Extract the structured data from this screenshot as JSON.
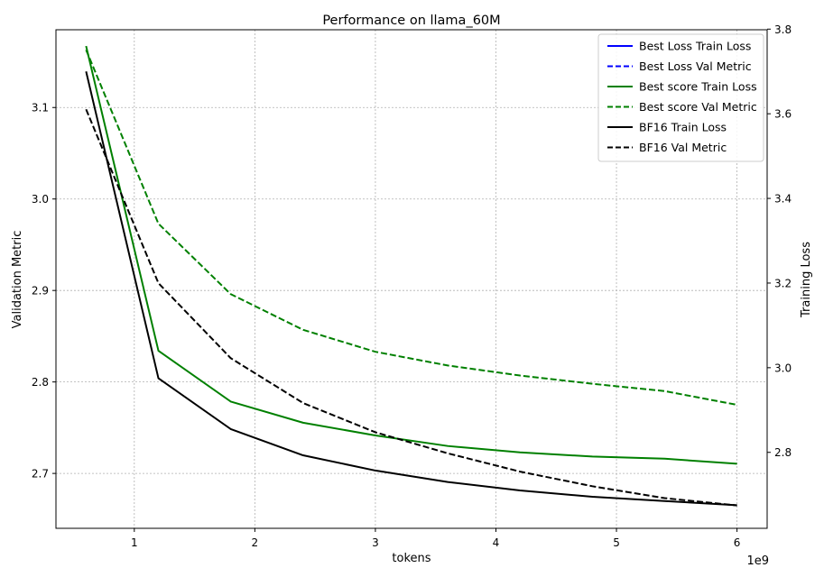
{
  "chart_data": {
    "type": "line",
    "title": "Performance on llama_60M",
    "xlabel": "tokens",
    "x_offset_label": "1e9",
    "ylabel_left": "Validation Metric",
    "ylabel_right": "Training Loss",
    "xlim": [
      0.35,
      6.25
    ],
    "ylim_left": [
      2.64,
      3.185
    ],
    "ylim_right": [
      2.6205,
      3.7985
    ],
    "x_ticks": [
      1,
      2,
      3,
      4,
      5,
      6
    ],
    "y_left_ticks": [
      2.7,
      2.8,
      2.9,
      3.0,
      3.1
    ],
    "y_right_ticks": [
      2.8,
      3.0,
      3.2,
      3.4,
      3.6,
      3.8
    ],
    "grid": true,
    "legend_position": "top-right",
    "series": [
      {
        "name": "Best Loss Train Loss",
        "axis": "right",
        "color": "#0000ff",
        "dash": false,
        "x": [],
        "values": []
      },
      {
        "name": "Best Loss Val Metric",
        "axis": "left",
        "color": "#0000ff",
        "dash": true,
        "x": [],
        "values": []
      },
      {
        "name": "Best score Train Loss",
        "axis": "right",
        "color": "#008000",
        "dash": false,
        "x": [
          0.6,
          1.2,
          1.8,
          2.4,
          3.0,
          3.6,
          4.2,
          4.8,
          5.4,
          6.0
        ],
        "values": [
          3.76,
          3.04,
          2.92,
          2.87,
          2.84,
          2.815,
          2.8,
          2.79,
          2.785,
          2.773
        ]
      },
      {
        "name": "Best score Val Metric",
        "axis": "left",
        "color": "#008000",
        "dash": true,
        "x": [
          0.6,
          1.2,
          1.8,
          2.4,
          3.0,
          3.6,
          4.2,
          4.8,
          5.4,
          6.0
        ],
        "values": [
          3.163,
          2.973,
          2.896,
          2.857,
          2.833,
          2.818,
          2.807,
          2.798,
          2.79,
          2.775
        ]
      },
      {
        "name": "BF16 Train Loss",
        "axis": "right",
        "color": "#000000",
        "dash": false,
        "x": [
          0.6,
          1.2,
          1.8,
          2.4,
          3.0,
          3.6,
          4.2,
          4.8,
          5.4,
          6.0
        ],
        "values": [
          3.7,
          2.975,
          2.855,
          2.793,
          2.757,
          2.73,
          2.71,
          2.695,
          2.685,
          2.675
        ]
      },
      {
        "name": "BF16 Val Metric",
        "axis": "left",
        "color": "#000000",
        "dash": true,
        "x": [
          0.6,
          1.2,
          1.8,
          2.4,
          3.0,
          3.6,
          4.2,
          4.8,
          5.4,
          6.0
        ],
        "values": [
          3.098,
          2.908,
          2.826,
          2.777,
          2.745,
          2.722,
          2.702,
          2.686,
          2.673,
          2.665
        ]
      }
    ]
  }
}
